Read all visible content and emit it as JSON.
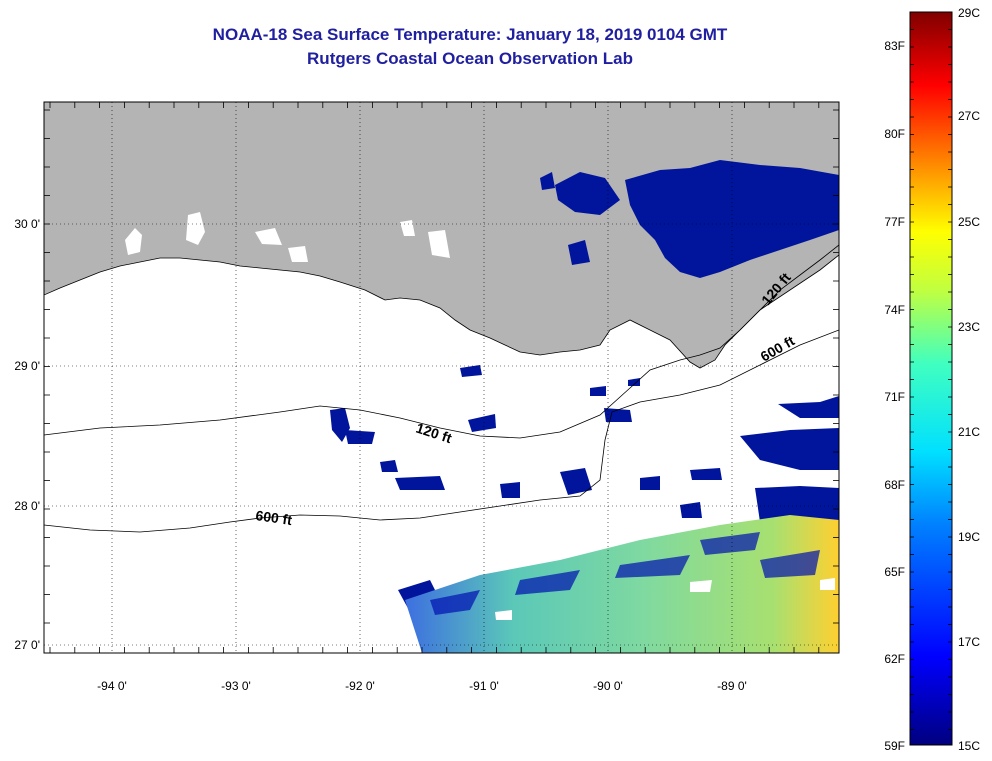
{
  "title": {
    "line1": "NOAA-18 Sea Surface Temperature:  January 18, 2019 0104 GMT",
    "line2": "Rutgers Coastal Ocean Observation Lab"
  },
  "axes": {
    "lon_ticks": [
      "-94 0'",
      "-93 0'",
      "-92 0'",
      "-91 0'",
      "-90 0'",
      "-89 0'"
    ],
    "lat_ticks": [
      "30 0'",
      "29 0'",
      "28 0'",
      "27 0'"
    ]
  },
  "contours": {
    "c120_a": "120 ft",
    "c120_b": "120 ft",
    "c600_a": "600 ft",
    "c600_b": "600 ft"
  },
  "colorbar": {
    "f_labels": [
      "83F",
      "80F",
      "77F",
      "74F",
      "71F",
      "68F",
      "65F",
      "62F",
      "59F"
    ],
    "c_labels": [
      "29C",
      "27C",
      "25C",
      "23C",
      "21C",
      "19C",
      "17C",
      "15C"
    ]
  },
  "colors": {
    "land": "#b4b4b4",
    "cloud_cold": "#00159c",
    "title": "#1f1fa0"
  }
}
